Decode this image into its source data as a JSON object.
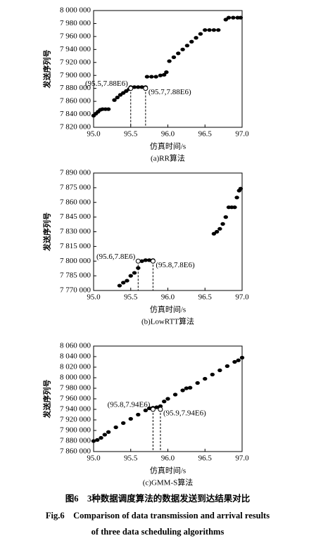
{
  "chart_data": [
    {
      "type": "scatter",
      "subtitle": "(a)RR算法",
      "xlabel": "仿真时间/s",
      "ylabel": "发送序列号",
      "color": "#000000",
      "x": [
        95.0,
        95.03,
        95.06,
        95.09,
        95.12,
        95.16,
        95.2,
        95.28,
        95.32,
        95.36,
        95.4,
        95.44,
        95.48,
        95.5,
        95.55,
        95.6,
        95.65,
        95.7,
        95.72,
        95.78,
        95.84,
        95.9,
        95.95,
        95.98,
        96.02,
        96.08,
        96.14,
        96.2,
        96.26,
        96.32,
        96.38,
        96.44,
        96.5,
        96.56,
        96.62,
        96.68,
        96.78,
        96.82,
        96.88,
        96.94,
        96.98
      ],
      "y": [
        7838000,
        7841000,
        7844000,
        7847000,
        7848000,
        7848000,
        7848000,
        7862000,
        7866000,
        7870000,
        7873000,
        7876000,
        7879000,
        7882000,
        7882000,
        7882000,
        7882000,
        7882000,
        7898000,
        7898000,
        7898000,
        7900000,
        7901000,
        7905000,
        7922000,
        7928000,
        7934000,
        7940000,
        7946000,
        7952000,
        7958000,
        7964000,
        7970000,
        7970000,
        7970000,
        7970000,
        7986000,
        7989000,
        7989000,
        7989000,
        7989000
      ],
      "xlim": [
        95,
        97
      ],
      "xticks": [
        {
          "value": 95,
          "label": "95.0"
        },
        {
          "value": 95.5,
          "label": "95.5"
        },
        {
          "value": 96,
          "label": "96.0"
        },
        {
          "value": 96.5,
          "label": "96.5"
        },
        {
          "value": 97,
          "label": "97.0"
        }
      ],
      "ylim": [
        7820000,
        8000000
      ],
      "yticks": [
        {
          "value": 7820000,
          "label": "7 820 000"
        },
        {
          "value": 7840000,
          "label": "7 840 000"
        },
        {
          "value": 7860000,
          "label": "7 860 000"
        },
        {
          "value": 7880000,
          "label": "7 880 000"
        },
        {
          "value": 7900000,
          "label": "7 900 000"
        },
        {
          "value": 7920000,
          "label": "7 920 000"
        },
        {
          "value": 7940000,
          "label": "7 940 000"
        },
        {
          "value": 7960000,
          "label": "7 960 000"
        },
        {
          "value": 7980000,
          "label": "7 980 000"
        },
        {
          "value": 8000000,
          "label": "8 000 000"
        }
      ],
      "annotations": [
        {
          "text": "(95.5,7.88E6)",
          "x": 95.5,
          "y": 7880000
        },
        {
          "text": "(95.7,7.88E6)",
          "x": 95.7,
          "y": 7880000
        }
      ]
    },
    {
      "type": "scatter",
      "subtitle": "(b)LowRTT算法",
      "xlabel": "仿真时间/s",
      "ylabel": "发送序列号",
      "color": "#000000",
      "x": [
        95.35,
        95.4,
        95.45,
        95.5,
        95.55,
        95.6,
        95.65,
        95.7,
        95.75,
        95.8,
        96.62,
        96.66,
        96.7,
        96.74,
        96.78,
        96.82,
        96.86,
        96.9,
        96.93,
        96.96,
        96.98
      ],
      "y": [
        7775000,
        7778000,
        7780000,
        7785000,
        7788000,
        7793000,
        7800000,
        7801000,
        7801000,
        7801000,
        7828000,
        7830000,
        7833000,
        7838000,
        7845000,
        7855000,
        7855000,
        7855000,
        7865000,
        7872000,
        7874000
      ],
      "xlim": [
        95,
        97
      ],
      "xticks": [
        {
          "value": 95,
          "label": "95.0"
        },
        {
          "value": 95.5,
          "label": "95.5"
        },
        {
          "value": 96,
          "label": "96.0"
        },
        {
          "value": 96.5,
          "label": "96.5"
        },
        {
          "value": 97,
          "label": "97.0"
        }
      ],
      "ylim": [
        7770000,
        7890000
      ],
      "yticks": [
        {
          "value": 7770000,
          "label": "7 770 000"
        },
        {
          "value": 7785000,
          "label": "7 785 000"
        },
        {
          "value": 7800000,
          "label": "7 800 000"
        },
        {
          "value": 7815000,
          "label": "7 815 000"
        },
        {
          "value": 7830000,
          "label": "7 830 000"
        },
        {
          "value": 7845000,
          "label": "7 845 000"
        },
        {
          "value": 7860000,
          "label": "7 860 000"
        },
        {
          "value": 7875000,
          "label": "7 875 000"
        },
        {
          "value": 7890000,
          "label": "7 890 000"
        }
      ],
      "annotations": [
        {
          "text": "(95.6,7.8E6)",
          "x": 95.6,
          "y": 7800000
        },
        {
          "text": "(95.8,7.8E6)",
          "x": 95.8,
          "y": 7800000
        }
      ]
    },
    {
      "type": "scatter",
      "subtitle": "(c)GMM-S算法",
      "xlabel": "仿真时间/s",
      "ylabel": "发送序列号",
      "color": "#000000",
      "x": [
        95.0,
        95.05,
        95.1,
        95.15,
        95.2,
        95.3,
        95.4,
        95.5,
        95.6,
        95.7,
        95.75,
        95.8,
        95.85,
        95.9,
        95.95,
        96.0,
        96.1,
        96.2,
        96.25,
        96.3,
        96.4,
        96.5,
        96.6,
        96.7,
        96.8,
        96.9,
        96.95,
        97.0
      ],
      "y": [
        7880000,
        7882000,
        7886000,
        7892000,
        7897000,
        7906000,
        7914000,
        7922000,
        7930000,
        7938000,
        7942000,
        7943000,
        7944000,
        7946000,
        7955000,
        7960000,
        7968000,
        7976000,
        7980000,
        7981000,
        7990000,
        7998000,
        8006000,
        8014000,
        8022000,
        8030000,
        8033000,
        8038000
      ],
      "xlim": [
        95,
        97
      ],
      "xticks": [
        {
          "value": 95,
          "label": "95.0"
        },
        {
          "value": 95.5,
          "label": "95.5"
        },
        {
          "value": 96,
          "label": "96.0"
        },
        {
          "value": 96.5,
          "label": "96.5"
        },
        {
          "value": 97,
          "label": "97.0"
        }
      ],
      "ylim": [
        7860000,
        8060000
      ],
      "yticks": [
        {
          "value": 7860000,
          "label": "7 860 000"
        },
        {
          "value": 7880000,
          "label": "7 880 000"
        },
        {
          "value": 7900000,
          "label": "7 900 000"
        },
        {
          "value": 7920000,
          "label": "7 920 000"
        },
        {
          "value": 7940000,
          "label": "7 940 000"
        },
        {
          "value": 7960000,
          "label": "7 960 000"
        },
        {
          "value": 7980000,
          "label": "7 980 000"
        },
        {
          "value": 8000000,
          "label": "8 000 000"
        },
        {
          "value": 8020000,
          "label": "8 020 000"
        },
        {
          "value": 8040000,
          "label": "8 040 000"
        },
        {
          "value": 8060000,
          "label": "8 060 000"
        }
      ],
      "annotations": [
        {
          "text": "(95.8,7.94E6)",
          "x": 95.8,
          "y": 7940000
        },
        {
          "text": "(95.9,7.94E6)",
          "x": 95.9,
          "y": 7940000
        }
      ]
    }
  ],
  "caption_cn": "图6　3种数据调度算法的数据发送到达结果对比",
  "caption_en_line1": "Fig.6　Comparison of data transmission and arrival results",
  "caption_en_line2": "of three data scheduling algorithms"
}
